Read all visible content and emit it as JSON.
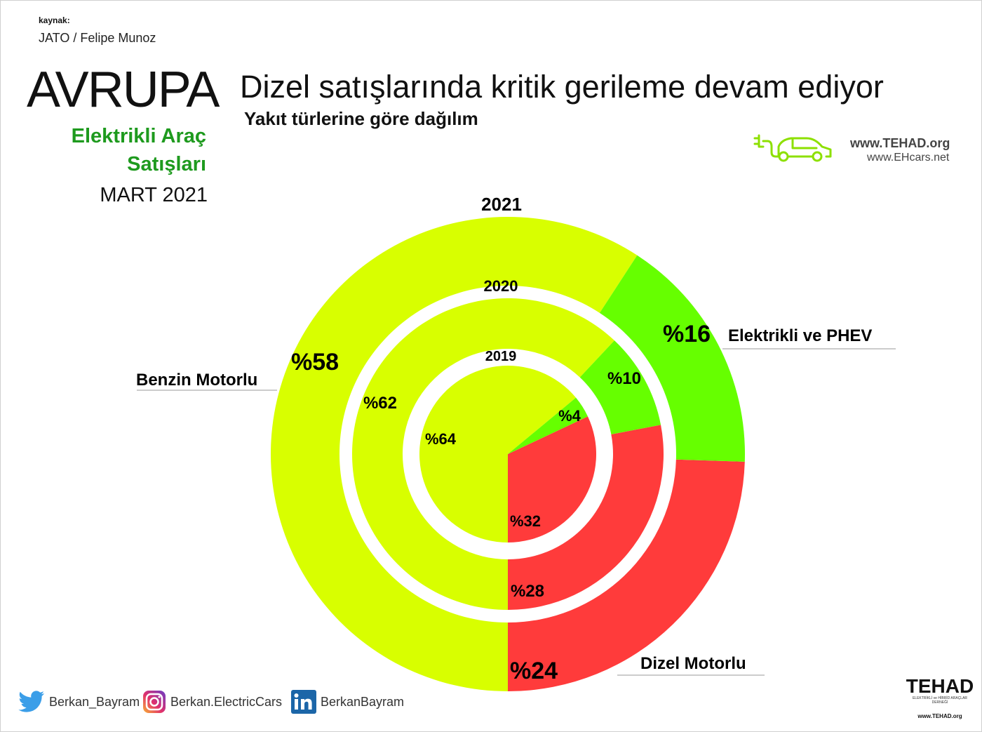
{
  "header": {
    "source_label": "kaynak:",
    "source_value": "JATO / Felipe Munoz",
    "region": "AVRUPA",
    "subtitle_line1": "Elektrikli Araç",
    "subtitle_line2": "Satışları",
    "period": "MART 2021"
  },
  "chart_data": {
    "type": "pie",
    "title": "Dizel satışlarında kritik gerileme devam ediyor",
    "subtitle": "Yakıt türlerine göre dağılım",
    "categories": [
      "Dizel Motorlu",
      "Benzin Motorlu",
      "Elektrikli ve PHEV"
    ],
    "colors": {
      "Dizel Motorlu": "#ff3b3b",
      "Benzin Motorlu": "#d8ff00",
      "Elektrikli ve PHEV": "#66ff00"
    },
    "series": [
      {
        "name": "2021",
        "values": {
          "Dizel Motorlu": 24,
          "Benzin Motorlu": 58,
          "Elektrikli ve PHEV": 16
        },
        "labels": {
          "Dizel Motorlu": "%24",
          "Benzin Motorlu": "%58",
          "Elektrikli ve PHEV": "%16"
        }
      },
      {
        "name": "2020",
        "values": {
          "Dizel Motorlu": 28,
          "Benzin Motorlu": 62,
          "Elektrikli ve PHEV": 10
        },
        "labels": {
          "Dizel Motorlu": "%28",
          "Benzin Motorlu": "%62",
          "Elektrikli ve PHEV": "%10"
        }
      },
      {
        "name": "2019",
        "values": {
          "Dizel Motorlu": 32,
          "Benzin Motorlu": 64,
          "Elektrikli ve PHEV": 4
        },
        "labels": {
          "Dizel Motorlu": "%32",
          "Benzin Motorlu": "%64",
          "Elektrikli ve PHEV": "%4"
        }
      }
    ],
    "legend": [
      "Benzin Motorlu",
      "Elektrikli ve PHEV",
      "Dizel Motorlu"
    ]
  },
  "branding": {
    "site_primary": "www.TEHAD.org",
    "site_secondary": "www.EHcars.net",
    "logo_icon": "electric-car-plug-icon",
    "org_name": "TEHAD",
    "org_tagline": "ELEKTRİKLİ ve HİBRİD ARAÇLAR DERNEĞİ",
    "org_url": "www.TEHAD.org"
  },
  "social": {
    "twitter": "Berkan_Bayram",
    "instagram": "Berkan.ElectricCars",
    "linkedin": "BerkanBayram"
  }
}
